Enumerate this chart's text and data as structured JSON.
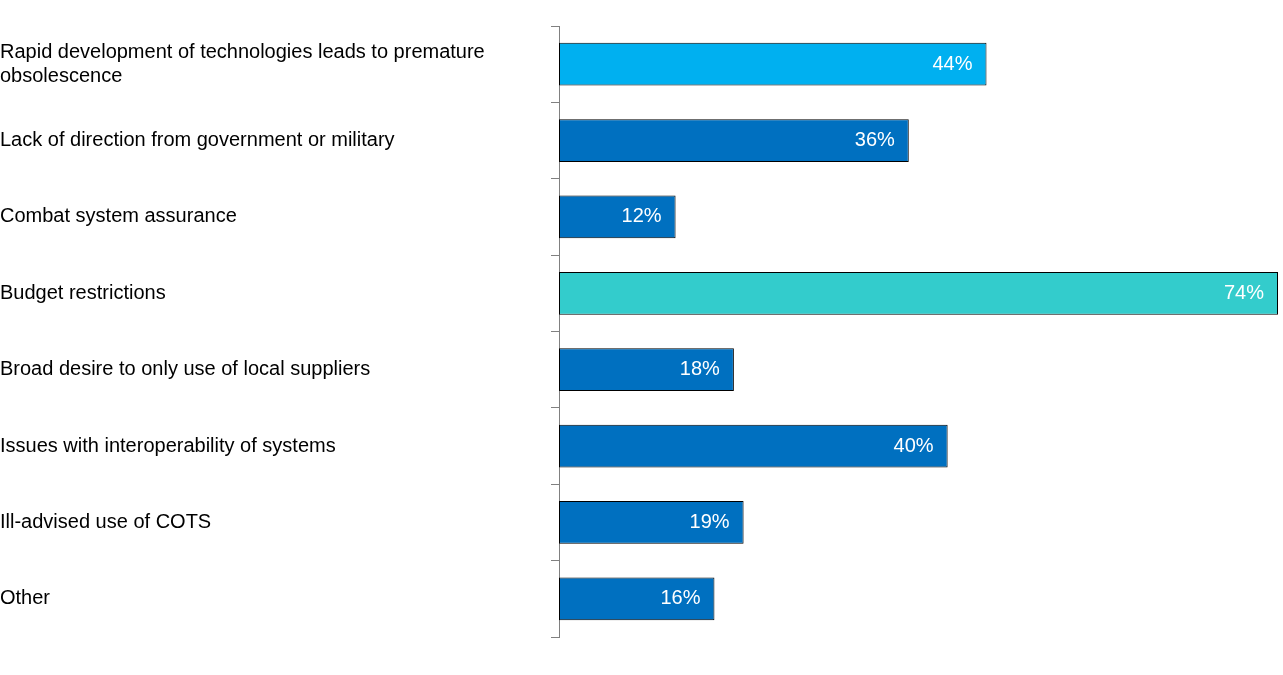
{
  "chart_data": {
    "type": "bar",
    "orientation": "horizontal",
    "categories": [
      "Rapid development of technologies leads to premature obsolescence",
      "Lack of direction from government or military",
      "Combat system assurance",
      "Budget restrictions",
      "Broad desire to only use of local suppliers",
      "Issues with interoperability of systems",
      "Ill-advised use of COTS",
      "Other"
    ],
    "values": [
      44,
      36,
      12,
      74,
      18,
      40,
      19,
      16
    ],
    "colors": [
      "#00b0f0",
      "#0070c0",
      "#0070c0",
      "#33cccc",
      "#0070c0",
      "#0070c0",
      "#0070c0",
      "#0070c0"
    ],
    "value_labels": [
      "44%",
      "36%",
      "12%",
      "74%",
      "18%",
      "40%",
      "19%",
      "16%"
    ]
  }
}
